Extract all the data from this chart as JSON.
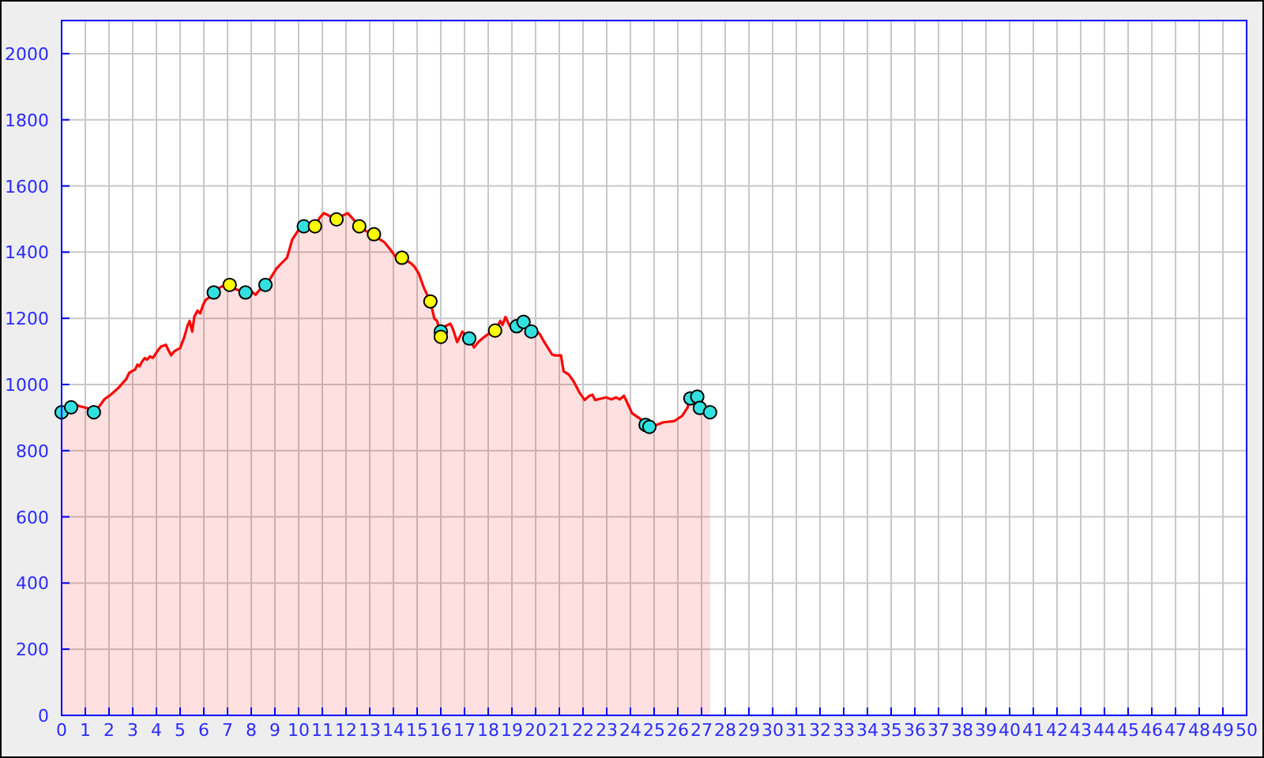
{
  "chart_data": {
    "type": "area",
    "xlim": [
      0,
      50
    ],
    "xticks": [
      0,
      1,
      2,
      3,
      4,
      5,
      6,
      7,
      8,
      9,
      10,
      11,
      12,
      13,
      14,
      15,
      16,
      17,
      18,
      19,
      20,
      21,
      22,
      23,
      24,
      25,
      26,
      27,
      28,
      29,
      30,
      31,
      32,
      33,
      34,
      35,
      36,
      37,
      38,
      39,
      40,
      41,
      42,
      43,
      44,
      45,
      46,
      47,
      48,
      49,
      50
    ],
    "ylim": [
      0,
      2100
    ],
    "yticks": [
      0,
      200,
      400,
      600,
      800,
      1000,
      1200,
      1400,
      1600,
      1800,
      2000
    ],
    "grid": true,
    "series": [
      {
        "color": "#ff0000",
        "x": [
          0,
          0.4,
          0.55,
          0.73,
          0.9,
          1.07,
          1.2,
          1.36,
          1.6,
          1.8,
          2.07,
          2.4,
          2.73,
          2.85,
          2.96,
          3.1,
          3.2,
          3.29,
          3.4,
          3.51,
          3.6,
          3.73,
          3.85,
          4.07,
          4.2,
          4.4,
          4.5,
          4.62,
          4.75,
          4.84,
          5.0,
          5.18,
          5.3,
          5.4,
          5.51,
          5.6,
          5.73,
          5.85,
          5.96,
          6.07,
          6.2,
          6.42,
          6.6,
          6.73,
          6.9,
          7.09,
          7.25,
          7.4,
          7.6,
          7.76,
          8.0,
          8.18,
          8.4,
          8.6,
          8.8,
          9.07,
          9.3,
          9.51,
          9.73,
          10.02,
          10.22,
          10.5,
          10.69,
          10.9,
          11.07,
          11.29,
          11.6,
          11.85,
          12.07,
          12.3,
          12.56,
          12.8,
          13.18,
          13.4,
          13.62,
          13.9,
          14.1,
          14.36,
          14.55,
          14.73,
          14.9,
          15.07,
          15.3,
          15.56,
          15.73,
          15.84,
          16.0,
          16.18,
          16.4,
          16.51,
          16.69,
          16.91,
          17.05,
          17.2,
          17.4,
          17.6,
          17.84,
          18.05,
          18.29,
          18.51,
          18.6,
          18.73,
          18.91,
          19.2,
          19.49,
          19.82,
          20.0,
          20.18,
          20.35,
          20.51,
          20.7,
          20.84,
          21.07,
          21.18,
          21.4,
          21.6,
          21.84,
          22.07,
          22.25,
          22.4,
          22.51,
          22.8,
          22.96,
          23.2,
          23.4,
          23.55,
          23.73,
          24.07,
          24.4,
          24.64,
          24.8,
          25.07,
          25.4,
          25.84,
          26.18,
          26.4,
          26.53,
          26.82,
          26.93,
          27.36
        ],
        "values": [
          916,
          931,
          940,
          935,
          932,
          929,
          925,
          916,
          935,
          955,
          969,
          990,
          1017,
          1035,
          1040,
          1045,
          1060,
          1055,
          1070,
          1080,
          1075,
          1085,
          1080,
          1104,
          1115,
          1120,
          1105,
          1088,
          1100,
          1104,
          1110,
          1144,
          1175,
          1192,
          1160,
          1205,
          1223,
          1215,
          1239,
          1255,
          1262,
          1278,
          1290,
          1295,
          1300,
          1301,
          1290,
          1287,
          1282,
          1278,
          1282,
          1271,
          1290,
          1301,
          1320,
          1351,
          1368,
          1383,
          1438,
          1470,
          1478,
          1485,
          1478,
          1505,
          1518,
          1510,
          1499,
          1510,
          1518,
          1500,
          1478,
          1465,
          1454,
          1440,
          1430,
          1405,
          1385,
          1383,
          1375,
          1367,
          1355,
          1335,
          1290,
          1251,
          1199,
          1192,
          1152,
          1176,
          1184,
          1168,
          1128,
          1160,
          1150,
          1139,
          1112,
          1130,
          1144,
          1155,
          1163,
          1192,
          1180,
          1204,
          1176,
          1176,
          1189,
          1160,
          1165,
          1152,
          1130,
          1112,
          1090,
          1088,
          1088,
          1040,
          1030,
          1010,
          977,
          953,
          965,
          969,
          953,
          958,
          961,
          955,
          961,
          955,
          966,
          913,
          897,
          878,
          872,
          877,
          886,
          889,
          905,
          929,
          958,
          963,
          929,
          916
        ]
      },
      {
        "type": "scatter",
        "color": "#33e0e0",
        "marker": "circle",
        "x": [
          0,
          0.4,
          1.36,
          6.42,
          7.76,
          8.6,
          10.22,
          16.0,
          17.2,
          19.2,
          19.49,
          19.82,
          24.64,
          24.8,
          26.53,
          26.82,
          26.93,
          27.36
        ],
        "values": [
          916,
          931,
          916,
          1278,
          1278,
          1301,
          1478,
          1160,
          1139,
          1176,
          1189,
          1160,
          878,
          872,
          958,
          963,
          929,
          916
        ]
      },
      {
        "type": "scatter",
        "color": "#ffff00",
        "marker": "circle",
        "x": [
          7.09,
          10.69,
          11.6,
          12.56,
          13.18,
          14.36,
          15.56,
          16.0,
          18.29
        ],
        "values": [
          1301,
          1478,
          1499,
          1478,
          1454,
          1383,
          1251,
          1144,
          1163
        ]
      }
    ]
  }
}
